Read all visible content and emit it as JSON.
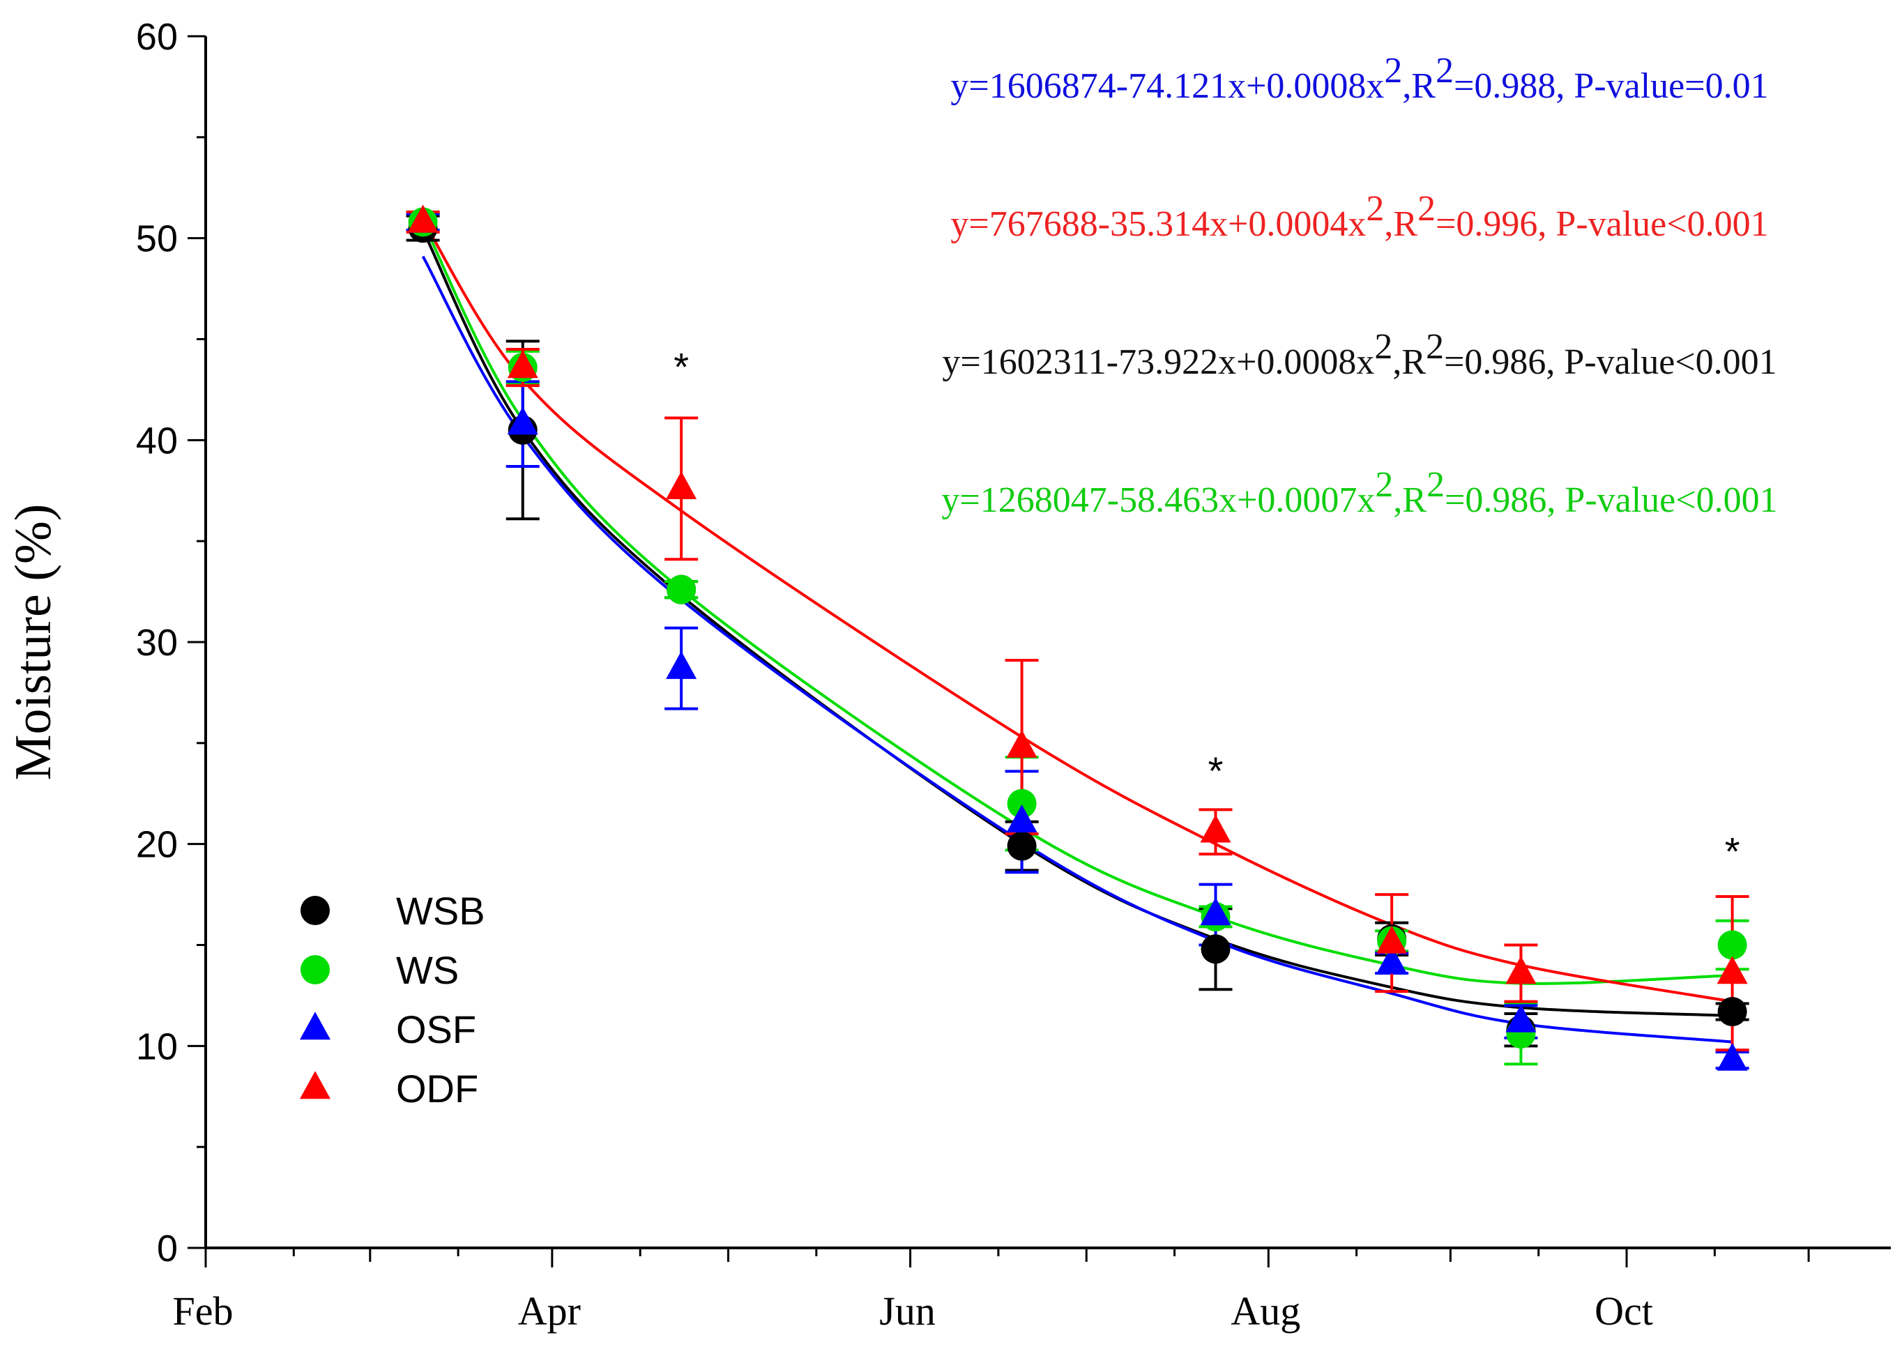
{
  "chart_data": {
    "type": "scatter",
    "title": "",
    "xlabel": "",
    "ylabel": "Moisture (%)",
    "ylim": [
      0,
      60
    ],
    "yticks": [
      0,
      10,
      20,
      30,
      40,
      50,
      60
    ],
    "x_months": [
      "Feb",
      "Apr",
      "Jun",
      "Aug",
      "Oct"
    ],
    "x_dates": [
      "2023-03-10",
      "2023-03-27",
      "2023-04-23",
      "2023-06-20",
      "2023-07-23",
      "2023-08-22",
      "2023-09-13",
      "2023-10-19"
    ],
    "series": [
      {
        "name": "WSB",
        "color": "#000000",
        "marker": "circle",
        "values": [
          50.5,
          40.5,
          32.6,
          19.9,
          14.8,
          15.3,
          10.8,
          11.7
        ],
        "errors": [
          0.6,
          4.4,
          0.4,
          1.2,
          2.0,
          0.8,
          0.8,
          0.4
        ],
        "fit": [
          50.4,
          40.5,
          32.3,
          20.0,
          15.3,
          12.9,
          11.9,
          11.5
        ]
      },
      {
        "name": "WS",
        "color": "#00dd00",
        "marker": "circle",
        "values": [
          50.8,
          43.6,
          32.6,
          22.0,
          16.4,
          15.2,
          10.6,
          15.0
        ],
        "errors": [
          0.4,
          0.8,
          0.4,
          2.3,
          0.5,
          0.5,
          1.5,
          1.2
        ],
        "fit": [
          50.8,
          41.0,
          32.6,
          20.8,
          16.4,
          14.0,
          13.1,
          13.5
        ]
      },
      {
        "name": "OSF",
        "color": "#0000ff",
        "marker": "triangle",
        "values": [
          50.8,
          40.8,
          28.7,
          21.1,
          16.5,
          14.1,
          11.2,
          9.3
        ],
        "errors": [
          0.4,
          2.1,
          2.0,
          2.5,
          1.5,
          0.5,
          0.8,
          0.4
        ],
        "fit": [
          49.1,
          40.2,
          32.1,
          20.1,
          15.2,
          12.6,
          11.1,
          10.2
        ]
      },
      {
        "name": "ODF",
        "color": "#ff0000",
        "marker": "triangle",
        "values": [
          50.8,
          43.6,
          37.6,
          24.8,
          20.6,
          15.1,
          13.6,
          13.6
        ],
        "errors": [
          0.5,
          0.9,
          3.5,
          4.3,
          1.1,
          2.4,
          1.4,
          3.8
        ],
        "fit": [
          50.9,
          43.0,
          36.5,
          25.3,
          20.0,
          16.0,
          14.0,
          12.2
        ]
      }
    ],
    "significance_marks": [
      {
        "x_index": 2,
        "label": "*",
        "y": 44
      },
      {
        "x_index": 4,
        "label": "*",
        "y": 24
      },
      {
        "x_index": 7,
        "label": "*",
        "y": 20
      }
    ],
    "equations": [
      {
        "series": "OSF",
        "color": "#1010dd",
        "pre": "y=1606874-74.121x+0.0008x",
        "sup1": "2",
        "mid": ",R",
        "sup2": "2",
        "post": "=0.988, P-value=0.01"
      },
      {
        "series": "ODF",
        "color": "#ee2222",
        "pre": "y=767688-35.314x+0.0004x",
        "sup1": "2",
        "mid": ",R",
        "sup2": "2",
        "post": "=0.996, P-value<0.001"
      },
      {
        "series": "WSB",
        "color": "#111111",
        "pre": "y=1602311-73.922x+0.0008x",
        "sup1": "2",
        "mid": ",R",
        "sup2": "2",
        "post": "=0.986, P-value<0.001"
      },
      {
        "series": "WS",
        "color": "#11cc11",
        "pre": "y=1268047-58.463x+0.0007x",
        "sup1": "2",
        "mid": ",R",
        "sup2": "2",
        "post": "=0.986, P-value<0.001"
      }
    ],
    "legend": {
      "placement": "bottom-left",
      "entries": [
        {
          "label": "WSB",
          "color": "#000000",
          "marker": "circle"
        },
        {
          "label": "WS",
          "color": "#00dd00",
          "marker": "circle"
        },
        {
          "label": "OSF",
          "color": "#0000ff",
          "marker": "triangle"
        },
        {
          "label": "ODF",
          "color": "#ff0000",
          "marker": "triangle"
        }
      ]
    }
  }
}
